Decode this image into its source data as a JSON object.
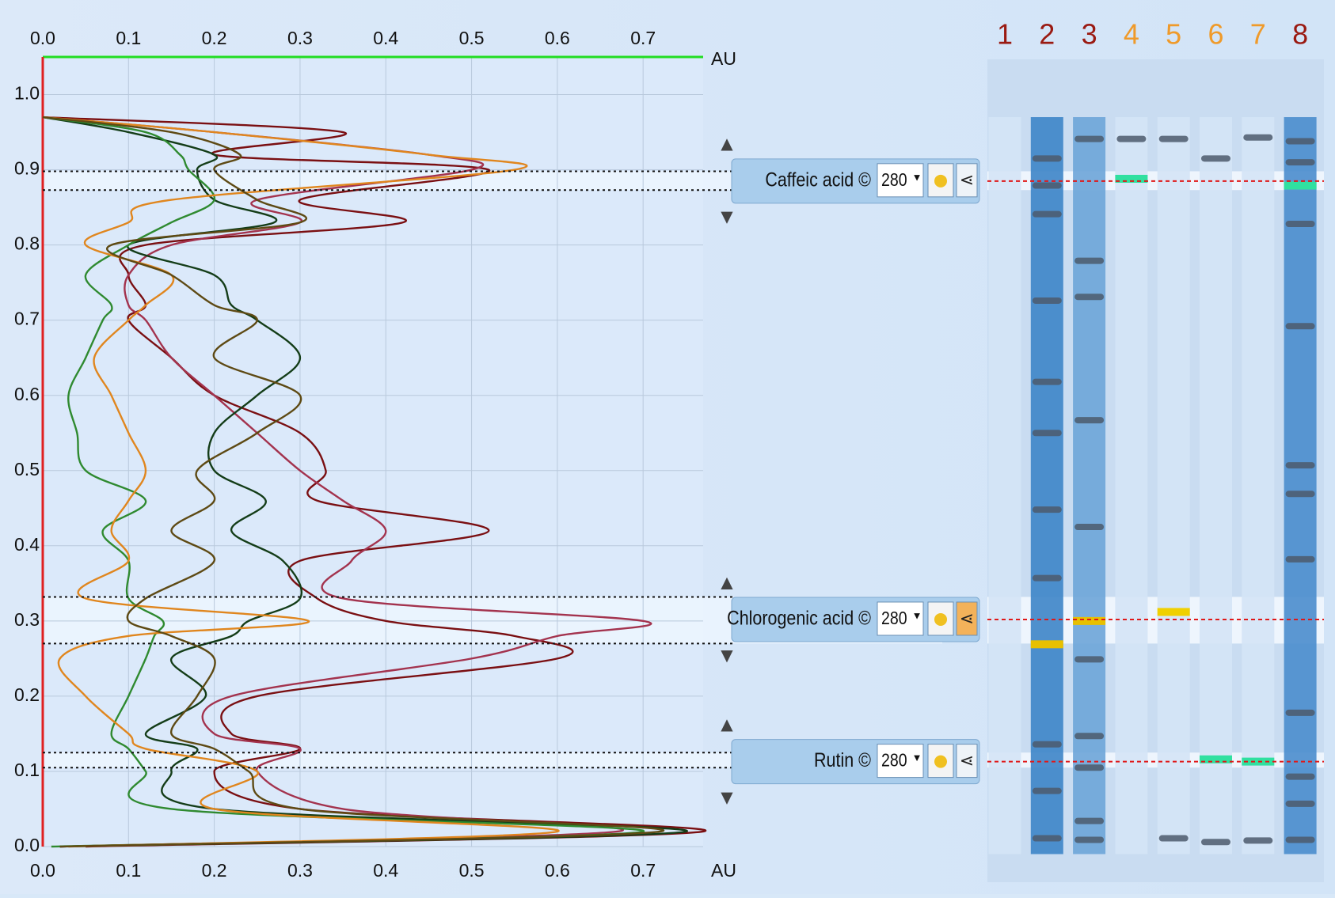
{
  "chart_data": {
    "type": "line",
    "x_label": "AU",
    "y": [
      0,
      0.02,
      0.05,
      0.1,
      0.13,
      0.15,
      0.2,
      0.25,
      0.28,
      0.3,
      0.33,
      0.38,
      0.42,
      0.46,
      0.5,
      0.55,
      0.6,
      0.65,
      0.7,
      0.72,
      0.76,
      0.8,
      0.83,
      0.86,
      0.9,
      0.92,
      0.95,
      0.97
    ],
    "series": [
      {
        "color": "#7a0f12",
        "values": [
          0.05,
          0.77,
          0.3,
          0.2,
          0.3,
          0.22,
          0.25,
          0.6,
          0.55,
          0.4,
          0.32,
          0.3,
          0.52,
          0.32,
          0.33,
          0.3,
          0.2,
          0.15,
          0.1,
          0.12,
          0.1,
          0.12,
          0.42,
          0.3,
          0.52,
          0.2,
          0.35,
          0
        ]
      },
      {
        "color": "#a3334e",
        "values": [
          0.02,
          0.67,
          0.35,
          0.25,
          0.3,
          0.2,
          0.22,
          0.5,
          0.6,
          0.7,
          0.35,
          0.36,
          0.4,
          0.35,
          0.3,
          0.25,
          0.2,
          0.15,
          0.12,
          0.1,
          0.1,
          0.15,
          0.3,
          0.25,
          0.5,
          0.45,
          0.2,
          0
        ]
      },
      {
        "color": "#143d18",
        "values": [
          0.02,
          0.75,
          0.2,
          0.15,
          0.18,
          0.12,
          0.19,
          0.15,
          0.22,
          0.24,
          0.3,
          0.28,
          0.22,
          0.26,
          0.2,
          0.2,
          0.25,
          0.3,
          0.25,
          0.22,
          0.2,
          0.1,
          0.27,
          0.2,
          0.18,
          0.2,
          0.1,
          0
        ]
      },
      {
        "color": "#2f8a30",
        "values": [
          0.01,
          0.7,
          0.15,
          0.12,
          0.1,
          0.08,
          0.1,
          0.12,
          0.13,
          0.14,
          0.1,
          0.1,
          0.07,
          0.12,
          0.05,
          0.04,
          0.03,
          0.05,
          0.07,
          0.08,
          0.05,
          0.1,
          0.15,
          0.2,
          0.17,
          0.16,
          0.12,
          0
        ]
      },
      {
        "color": "#e0861e",
        "values": [
          0.03,
          0.6,
          0.2,
          0.25,
          0.12,
          0.1,
          0.05,
          0.02,
          0.1,
          0.31,
          0.05,
          0.1,
          0.08,
          0.1,
          0.12,
          0.1,
          0.08,
          0.06,
          0.1,
          0.12,
          0.15,
          0.05,
          0.1,
          0.15,
          0.55,
          0.45,
          0.2,
          0
        ]
      },
      {
        "color": "#5e4a14",
        "values": [
          0.02,
          0.72,
          0.3,
          0.24,
          0.2,
          0.15,
          0.18,
          0.2,
          0.15,
          0.1,
          0.12,
          0.2,
          0.15,
          0.2,
          0.18,
          0.25,
          0.3,
          0.2,
          0.25,
          0.2,
          0.15,
          0.08,
          0.3,
          0.25,
          0.2,
          0.23,
          0.15,
          0
        ]
      }
    ],
    "xlim": [
      0,
      0.77
    ],
    "xticks": [
      {
        "value": 0,
        "label": "0.0"
      },
      0.1,
      0.2,
      0.3,
      0.4,
      0.5,
      0.6,
      0.7
    ],
    "ylim": [
      0,
      1.05
    ],
    "yticks": [
      {
        "value": 0,
        "label": "0.0"
      },
      0.1,
      0.2,
      0.3,
      0.4,
      0.5,
      0.6,
      0.7,
      0.8,
      0.9,
      {
        "value": 1,
        "label": "1.0"
      }
    ],
    "grid": true
  },
  "compounds": [
    {
      "name": "Caffeic acid ©",
      "wavelength": "280",
      "rf": 0.885,
      "band": [
        0.873,
        0.898
      ]
    },
    {
      "name": "Chlorogenic acid ©",
      "wavelength": "280",
      "rf": 0.302,
      "band": [
        0.27,
        0.332
      ]
    },
    {
      "name": "Rutin ©",
      "wavelength": "280",
      "rf": 0.113,
      "band": [
        0.105,
        0.125
      ]
    }
  ],
  "lanes": [
    {
      "label": "1",
      "label_color": "#9a1a12",
      "shade": "#d4e4f6",
      "bands": []
    },
    {
      "label": "2",
      "label_color": "#9a1a12",
      "shade": "#3d85c8",
      "bands": [
        0.915,
        0.879,
        0.841,
        0.726,
        0.618,
        0.55,
        0.448,
        0.357,
        0.136,
        0.074,
        0.011
      ],
      "highlight": {
        "rf": 0.269,
        "color": "#e8c000"
      }
    },
    {
      "label": "3",
      "label_color": "#9a1a12",
      "shade": "#6da5d8",
      "bands": [
        0.941,
        0.779,
        0.731,
        0.567,
        0.425,
        0.249,
        0.147,
        0.105,
        0.034,
        0.009
      ],
      "highlight": {
        "rf": 0.3,
        "color": "#e8c000"
      }
    },
    {
      "label": "4",
      "label_color": "#ef9a2a",
      "shade": "#d4e4f6",
      "bands": [
        0.941
      ],
      "highlight": {
        "rf": 0.888,
        "color": "#30e0a0"
      }
    },
    {
      "label": "5",
      "label_color": "#ef9a2a",
      "shade": "#d4e4f6",
      "bands": [
        0.941,
        0.011
      ],
      "highlight": {
        "rf": 0.312,
        "color": "#f0d000"
      }
    },
    {
      "label": "6",
      "label_color": "#ef9a2a",
      "shade": "#d4e4f6",
      "bands": [
        0.915,
        0.006
      ],
      "highlight": {
        "rf": 0.116,
        "color": "#30e0a0"
      }
    },
    {
      "label": "7",
      "label_color": "#ef9a2a",
      "shade": "#d4e4f6",
      "bands": [
        0.943,
        0.008
      ],
      "highlight": {
        "rf": 0.113,
        "color": "#30e0a0"
      }
    },
    {
      "label": "8",
      "label_color": "#9a1a12",
      "shade": "#4a8dcd",
      "bands": [
        0.938,
        0.91,
        0.828,
        0.692,
        0.507,
        0.469,
        0.382,
        0.178,
        0.093,
        0.057,
        0.009
      ],
      "highlight": {
        "rf": 0.879,
        "color": "#30e0a0"
      }
    }
  ]
}
